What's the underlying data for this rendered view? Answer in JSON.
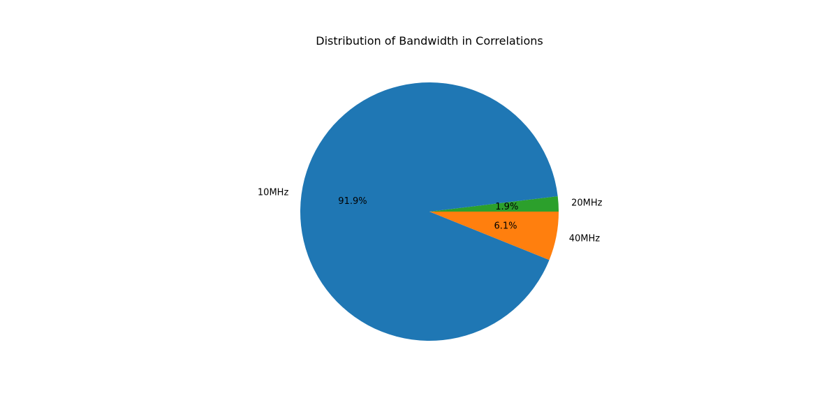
{
  "chart_data": {
    "type": "pie",
    "title": "Distribution of Bandwidth in Correlations",
    "start_angle_deg": 0,
    "direction": "counterclockwise",
    "slices": [
      {
        "label": "20MHz",
        "value": 1.9,
        "pct_label": "1.9%",
        "color": "#2ca02c"
      },
      {
        "label": "10MHz",
        "value": 91.9,
        "pct_label": "91.9%",
        "color": "#1f77b4"
      },
      {
        "label": "40MHz",
        "value": 6.1,
        "pct_label": "6.1%",
        "color": "#ff7f0e"
      }
    ]
  }
}
